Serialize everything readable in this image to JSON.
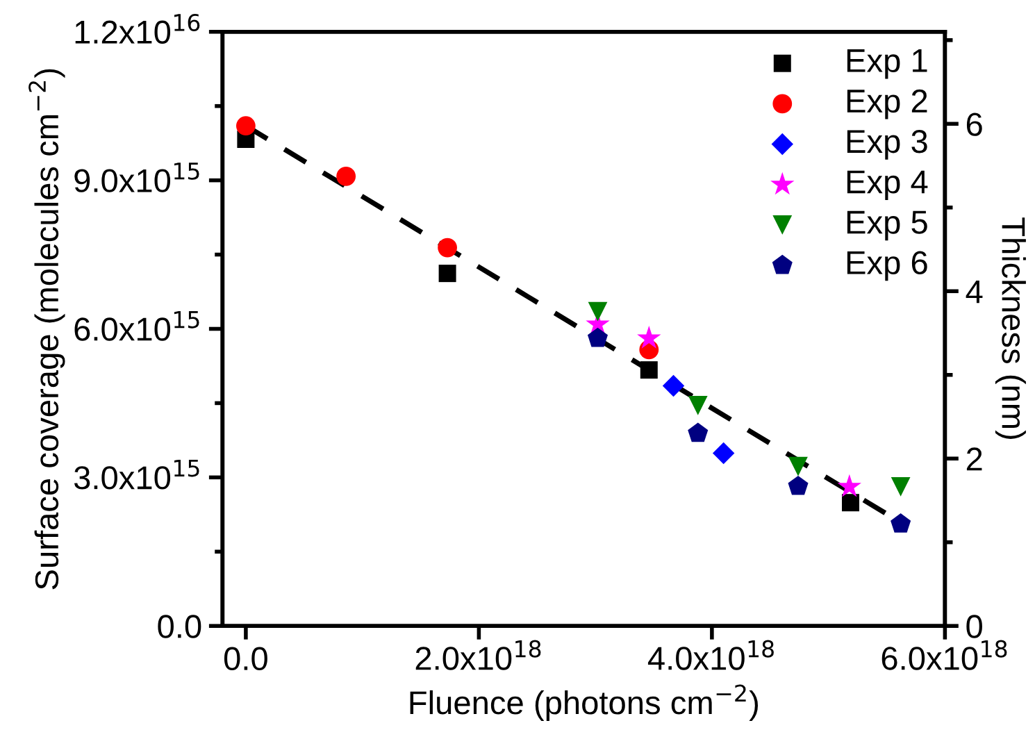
{
  "chart_data": {
    "type": "scatter",
    "xlabel": "Fluence (photons cm$^{−2}$)",
    "ylabel": "Surface coverage (molecules cm$^{−2}$)",
    "y2label": "Thickness (nm)",
    "xlim": [
      -2e+17,
      6e+18
    ],
    "xticks": [
      {
        "value": 0,
        "label": "0.0"
      },
      {
        "value": 2e+18,
        "label": "2.0x10$^{18}$"
      },
      {
        "value": 4e+18,
        "label": "4.0x10$^{18}$"
      },
      {
        "value": 6e+18,
        "label": "6.0x10$^{18}$"
      }
    ],
    "ylim": [
      0,
      1.2e+16
    ],
    "yticks": [
      {
        "value": 0,
        "label": "0.0"
      },
      {
        "value": 3000000000000000.0,
        "label": "3.0x10$^{15}$"
      },
      {
        "value": 6000000000000000.0,
        "label": "6.0x10$^{15}$"
      },
      {
        "value": 9000000000000000.0,
        "label": "9.0x10$^{15}$"
      },
      {
        "value": 1.2e+16,
        "label": "1.2x10$^{16}$"
      }
    ],
    "y2lim": [
      0,
      7.1
    ],
    "y2ticks": [
      0,
      2,
      4,
      6
    ],
    "grid": false,
    "legend": "top right",
    "series": [
      {
        "name": "Exp 1",
        "color": "#000000",
        "marker": "square",
        "x": [
          0,
          1.73e+18,
          3.46e+18,
          5.19e+18
        ],
        "values": [
          9830000000000000.0,
          7120000000000000.0,
          5170000000000000.0,
          2490000000000000.0
        ]
      },
      {
        "name": "Exp 2",
        "color": "#ff0000",
        "marker": "circle",
        "x": [
          0,
          8.6e+17,
          1.73e+18,
          3.46e+18
        ],
        "values": [
          1.01e+16,
          9080000000000000.0,
          7640000000000000.0,
          5580000000000000.0
        ]
      },
      {
        "name": "Exp 3",
        "color": "#0000ff",
        "marker": "diamond",
        "x": [
          3.67e+18,
          4.1e+18
        ],
        "values": [
          4850000000000000.0,
          3490000000000000.0
        ]
      },
      {
        "name": "Exp 4",
        "color": "#ff00ff",
        "marker": "star",
        "x": [
          3.02e+18,
          3.46e+18,
          5.18e+18
        ],
        "values": [
          6090000000000000.0,
          5810000000000000.0,
          2810000000000000.0
        ]
      },
      {
        "name": "Exp 5",
        "color": "#008000",
        "marker": "triangle",
        "x": [
          3.02e+18,
          3.88e+18,
          4.74e+18,
          5.62e+18
        ],
        "values": [
          6350000000000000.0,
          4450000000000000.0,
          3220000000000000.0,
          2810000000000000.0
        ]
      },
      {
        "name": "Exp 6",
        "color": "#000080",
        "x": [
          3.02e+18,
          3.88e+18,
          4.74e+18,
          5.62e+18
        ],
        "values": [
          5810000000000000.0,
          3890000000000000.0,
          2820000000000000.0,
          2060000000000000.0
        ]
      },
      {
        "type": "line",
        "color": "#000000",
        "line_style": "dashed",
        "marker": "none",
        "x": [
          0,
          5.62e+18
        ],
        "values": [
          1.01e+16,
          2090000000000000.0
        ]
      }
    ]
  }
}
